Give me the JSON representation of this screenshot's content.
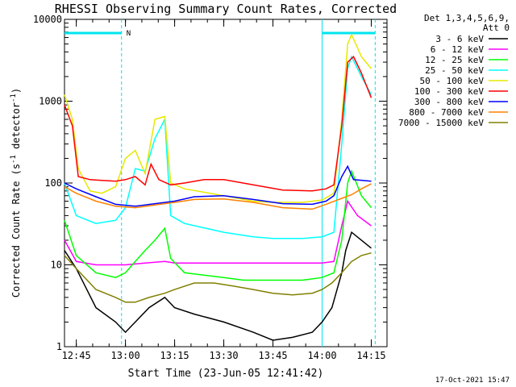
{
  "chart_data": {
    "type": "line",
    "title": "RHESSI Observing Summary Count Rates, Corrected",
    "xlabel": "Start Time (23-Jun-05 12:41:42)",
    "ylabel_main": "Corrected Count Rate (s",
    "ylabel_sup1": "-1",
    "ylabel_mid": " detector",
    "ylabel_sup2": "-1",
    "ylabel_end": ")",
    "yscale": "log",
    "ylim": [
      1,
      10000
    ],
    "xlim_minutes": [
      12.7,
      16.3
    ],
    "x_ticks": [
      {
        "label": "12:45",
        "h": 12.75
      },
      {
        "label": "13:00",
        "h": 13.0
      },
      {
        "label": "13:15",
        "h": 13.25
      },
      {
        "label": "13:30",
        "h": 13.5
      },
      {
        "label": "13:45",
        "h": 13.75
      },
      {
        "label": "14:00",
        "h": 14.0
      },
      {
        "label": "14:15",
        "h": 14.25
      }
    ],
    "y_ticks": [
      {
        "label": "1",
        "v": 1
      },
      {
        "label": "10",
        "v": 10
      },
      {
        "label": "100",
        "v": 100
      },
      {
        "label": "1000",
        "v": 1000
      },
      {
        "label": "10000",
        "v": 10000
      }
    ],
    "legend_header": [
      "Det 1,3,4,5,6,9,",
      "Att 0"
    ],
    "legend_placement": "right",
    "night_marker": "N",
    "night_segments_h": [
      [
        12.69,
        12.98
      ],
      [
        14.0,
        14.27
      ]
    ],
    "series": [
      {
        "name": "3 - 6 keV",
        "color": "#000000",
        "points": [
          [
            12.69,
            15
          ],
          [
            12.75,
            9
          ],
          [
            12.85,
            3
          ],
          [
            12.95,
            2
          ],
          [
            13.0,
            1.5
          ],
          [
            13.05,
            2
          ],
          [
            13.12,
            3
          ],
          [
            13.2,
            4
          ],
          [
            13.25,
            3
          ],
          [
            13.35,
            2.5
          ],
          [
            13.5,
            2
          ],
          [
            13.65,
            1.5
          ],
          [
            13.75,
            1.2
          ],
          [
            13.85,
            1.3
          ],
          [
            13.95,
            1.5
          ],
          [
            14.0,
            2
          ],
          [
            14.05,
            3
          ],
          [
            14.1,
            8
          ],
          [
            14.12,
            15
          ],
          [
            14.15,
            25
          ],
          [
            14.2,
            20
          ],
          [
            14.25,
            16
          ]
        ]
      },
      {
        "name": "6 - 12 keV",
        "color": "#ff00ff",
        "points": [
          [
            12.69,
            20
          ],
          [
            12.75,
            11
          ],
          [
            12.85,
            10
          ],
          [
            13.0,
            10
          ],
          [
            13.1,
            10.5
          ],
          [
            13.2,
            11
          ],
          [
            13.25,
            10.5
          ],
          [
            13.5,
            10.5
          ],
          [
            13.75,
            10.5
          ],
          [
            14.0,
            10.5
          ],
          [
            14.06,
            11
          ],
          [
            14.1,
            30
          ],
          [
            14.13,
            60
          ],
          [
            14.18,
            40
          ],
          [
            14.25,
            30
          ]
        ]
      },
      {
        "name": "12 - 25 keV",
        "color": "#00ff00",
        "points": [
          [
            12.69,
            35
          ],
          [
            12.75,
            13
          ],
          [
            12.85,
            8
          ],
          [
            12.95,
            7
          ],
          [
            13.0,
            8
          ],
          [
            13.05,
            11
          ],
          [
            13.1,
            15
          ],
          [
            13.15,
            20
          ],
          [
            13.2,
            28
          ],
          [
            13.23,
            12
          ],
          [
            13.3,
            8
          ],
          [
            13.5,
            7
          ],
          [
            13.6,
            6.5
          ],
          [
            13.75,
            6.5
          ],
          [
            13.9,
            6.5
          ],
          [
            14.0,
            7
          ],
          [
            14.06,
            8
          ],
          [
            14.1,
            20
          ],
          [
            14.13,
            100
          ],
          [
            14.15,
            140
          ],
          [
            14.2,
            70
          ],
          [
            14.25,
            50
          ]
        ]
      },
      {
        "name": "25 - 50 keV",
        "color": "#00ffff",
        "points": [
          [
            12.69,
            100
          ],
          [
            12.75,
            40
          ],
          [
            12.85,
            32
          ],
          [
            12.95,
            35
          ],
          [
            13.0,
            50
          ],
          [
            13.05,
            150
          ],
          [
            13.1,
            140
          ],
          [
            13.15,
            350
          ],
          [
            13.2,
            600
          ],
          [
            13.23,
            40
          ],
          [
            13.3,
            32
          ],
          [
            13.5,
            25
          ],
          [
            13.65,
            22
          ],
          [
            13.75,
            21
          ],
          [
            13.9,
            21
          ],
          [
            14.0,
            22
          ],
          [
            14.06,
            25
          ],
          [
            14.1,
            300
          ],
          [
            14.13,
            2500
          ],
          [
            14.15,
            3500
          ],
          [
            14.2,
            2000
          ],
          [
            14.25,
            1200
          ]
        ]
      },
      {
        "name": "50 - 100 keV",
        "color": "#e8e800",
        "points": [
          [
            12.69,
            1200
          ],
          [
            12.73,
            600
          ],
          [
            12.76,
            150
          ],
          [
            12.82,
            80
          ],
          [
            12.88,
            75
          ],
          [
            12.95,
            90
          ],
          [
            13.0,
            200
          ],
          [
            13.05,
            250
          ],
          [
            13.1,
            130
          ],
          [
            13.15,
            600
          ],
          [
            13.2,
            650
          ],
          [
            13.23,
            100
          ],
          [
            13.3,
            85
          ],
          [
            13.5,
            70
          ],
          [
            13.65,
            60
          ],
          [
            13.75,
            58
          ],
          [
            13.9,
            58
          ],
          [
            14.0,
            62
          ],
          [
            14.06,
            75
          ],
          [
            14.1,
            600
          ],
          [
            14.13,
            5000
          ],
          [
            14.15,
            6500
          ],
          [
            14.2,
            3500
          ],
          [
            14.25,
            2500
          ]
        ]
      },
      {
        "name": "100 - 300 keV",
        "color": "#ff0000",
        "points": [
          [
            12.69,
            900
          ],
          [
            12.73,
            500
          ],
          [
            12.76,
            120
          ],
          [
            12.82,
            110
          ],
          [
            12.95,
            105
          ],
          [
            13.0,
            110
          ],
          [
            13.05,
            120
          ],
          [
            13.1,
            95
          ],
          [
            13.13,
            170
          ],
          [
            13.17,
            110
          ],
          [
            13.23,
            95
          ],
          [
            13.3,
            100
          ],
          [
            13.4,
            110
          ],
          [
            13.5,
            110
          ],
          [
            13.65,
            95
          ],
          [
            13.8,
            82
          ],
          [
            13.95,
            80
          ],
          [
            14.02,
            85
          ],
          [
            14.06,
            95
          ],
          [
            14.1,
            500
          ],
          [
            14.13,
            3000
          ],
          [
            14.16,
            3500
          ],
          [
            14.2,
            2200
          ],
          [
            14.25,
            1100
          ]
        ]
      },
      {
        "name": "300 - 800 keV",
        "color": "#0000ff",
        "points": [
          [
            12.69,
            100
          ],
          [
            12.75,
            85
          ],
          [
            12.85,
            68
          ],
          [
            12.95,
            55
          ],
          [
            13.05,
            52
          ],
          [
            13.15,
            56
          ],
          [
            13.25,
            60
          ],
          [
            13.35,
            68
          ],
          [
            13.5,
            70
          ],
          [
            13.65,
            63
          ],
          [
            13.8,
            56
          ],
          [
            13.95,
            55
          ],
          [
            14.02,
            60
          ],
          [
            14.06,
            70
          ],
          [
            14.1,
            120
          ],
          [
            14.13,
            160
          ],
          [
            14.16,
            110
          ],
          [
            14.25,
            105
          ]
        ]
      },
      {
        "name": "800 - 7000 keV",
        "color": "#ff8000",
        "points": [
          [
            12.69,
            90
          ],
          [
            12.75,
            75
          ],
          [
            12.85,
            60
          ],
          [
            12.95,
            52
          ],
          [
            13.05,
            50
          ],
          [
            13.15,
            54
          ],
          [
            13.25,
            58
          ],
          [
            13.35,
            63
          ],
          [
            13.5,
            64
          ],
          [
            13.65,
            58
          ],
          [
            13.8,
            50
          ],
          [
            13.95,
            48
          ],
          [
            14.02,
            55
          ],
          [
            14.1,
            65
          ],
          [
            14.15,
            72
          ],
          [
            14.2,
            85
          ],
          [
            14.25,
            98
          ]
        ]
      },
      {
        "name": "7000 - 15000 keV",
        "color": "#808000",
        "points": [
          [
            12.69,
            13
          ],
          [
            12.75,
            9
          ],
          [
            12.85,
            5
          ],
          [
            12.95,
            4
          ],
          [
            13.0,
            3.5
          ],
          [
            13.05,
            3.5
          ],
          [
            13.12,
            4
          ],
          [
            13.2,
            4.5
          ],
          [
            13.25,
            5
          ],
          [
            13.35,
            6
          ],
          [
            13.45,
            6
          ],
          [
            13.55,
            5.5
          ],
          [
            13.65,
            5
          ],
          [
            13.75,
            4.5
          ],
          [
            13.85,
            4.3
          ],
          [
            13.95,
            4.5
          ],
          [
            14.0,
            5
          ],
          [
            14.05,
            6
          ],
          [
            14.1,
            8
          ],
          [
            14.15,
            11
          ],
          [
            14.2,
            13
          ],
          [
            14.25,
            14
          ]
        ]
      }
    ]
  },
  "footer_timestamp": "17-Oct-2021 15:47"
}
